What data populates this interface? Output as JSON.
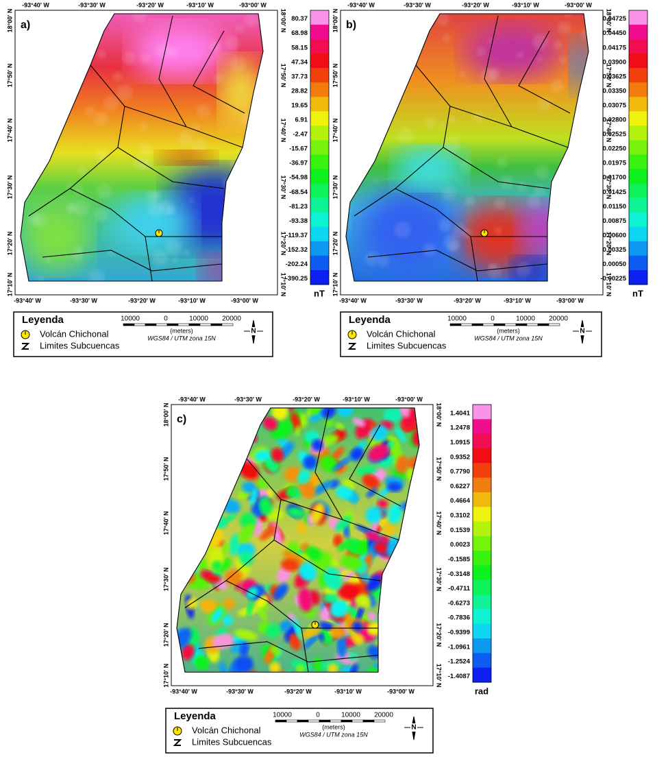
{
  "panels": [
    {
      "label": "a)",
      "top_ticks": [
        "-93°40' W",
        "-93°30' W",
        "-93°20' W",
        "-93°10' W",
        "-93°00' W"
      ],
      "bottom_ticks": [
        "-93°40' W",
        "-93°30' W",
        "-93°20' W",
        "-93°10' W",
        "-93°00' W"
      ],
      "left_ticks": [
        "18°00' N",
        "17°50' N",
        "17°40' N",
        "17°30' N",
        "17°20' N",
        "17°10' N"
      ],
      "right_ticks": [
        "18°00' N",
        "17°50' N",
        "17°40' N",
        "17°30' N",
        "17°20' N",
        "17°10' N"
      ],
      "colorbar": [
        "80.37",
        "68.98",
        "58.15",
        "47.34",
        "37.73",
        "28.82",
        "19.65",
        "6.91",
        "-2.47",
        "-15.67",
        "-36.97",
        "-54.98",
        "-68.54",
        "-81.23",
        "-93.38",
        "-119.37",
        "-152.32",
        "-202.24",
        "-390.25"
      ],
      "unit": "nT",
      "legend": {
        "title": "Leyenda",
        "volcano": "Volcán Chichonal",
        "boundaries": "Limites Subcuencas",
        "scale_labels": [
          "10000",
          "0",
          "10000",
          "20000"
        ],
        "scale_unit": "(meters)",
        "projection": "WGS84 / UTM zona 15N",
        "north": "N"
      }
    },
    {
      "label": "b)",
      "top_ticks": [
        "-93°40' W",
        "-93°30' W",
        "-93°20' W",
        "-93°10' W",
        "-93°00' W"
      ],
      "bottom_ticks": [
        "-93°40' W",
        "-93°30' W",
        "-93°20' W",
        "-93°10' W",
        "-93°00' W"
      ],
      "left_ticks": [
        "18°00' N",
        "17°50' N",
        "17°40' N",
        "17°30' N",
        "17°20' N",
        "17°10' N"
      ],
      "right_ticks": [
        "18°00' N",
        "17°50' N",
        "17°40' N",
        "17°30' N",
        "17°20' N",
        "17°10' N"
      ],
      "colorbar": [
        "0.04725",
        "0.04450",
        "0.04175",
        "0.03900",
        "0.03625",
        "0.03350",
        "0.03075",
        "0.02800",
        "0.02525",
        "0.02250",
        "0.01975",
        "0.01700",
        "0.01425",
        "0.01150",
        "0.00875",
        "0.00600",
        "0.00325",
        "0.00050",
        "-0.00225"
      ],
      "unit": "nT",
      "legend": {
        "title": "Leyenda",
        "volcano": "Volcán Chichonal",
        "boundaries": "Limites Subcuencas",
        "scale_labels": [
          "10000",
          "0",
          "10000",
          "20000"
        ],
        "scale_unit": "(meters)",
        "projection": "WGS84 / UTM zona 15N",
        "north": "N"
      }
    },
    {
      "label": "c)",
      "top_ticks": [
        "-93°40' W",
        "-93°30' W",
        "-93°20' W",
        "-93°10' W",
        "-93°00' W"
      ],
      "bottom_ticks": [
        "-93°40' W",
        "-93°30' W",
        "-93°20' W",
        "-93°10' W",
        "-93°00' W"
      ],
      "left_ticks": [
        "18°00' N",
        "17°50' N",
        "17°40' N",
        "17°30' N",
        "17°20' N",
        "17°10' N"
      ],
      "right_ticks": [
        "18°00' N",
        "17°50' N",
        "17°40' N",
        "17°30' N",
        "17°20' N",
        "17°10' N"
      ],
      "colorbar": [
        "1.4041",
        "1.2478",
        "1.0915",
        "0.9352",
        "0.7790",
        "0.6227",
        "0.4664",
        "0.3102",
        "0.1539",
        "0.0023",
        "-0.1585",
        "-0.3148",
        "-0.4711",
        "-0.6273",
        "-0.7836",
        "-0.9399",
        "-1.0961",
        "-1.2524",
        "-1.4087"
      ],
      "unit": "rad",
      "legend": {
        "title": "Leyenda",
        "volcano": "Volcán Chichonal",
        "boundaries": "Limites Subcuencas",
        "scale_labels": [
          "10000",
          "0",
          "10000",
          "20000"
        ],
        "scale_unit": "(meters)",
        "projection": "WGS84 / UTM zona 15N",
        "north": "N"
      }
    }
  ]
}
